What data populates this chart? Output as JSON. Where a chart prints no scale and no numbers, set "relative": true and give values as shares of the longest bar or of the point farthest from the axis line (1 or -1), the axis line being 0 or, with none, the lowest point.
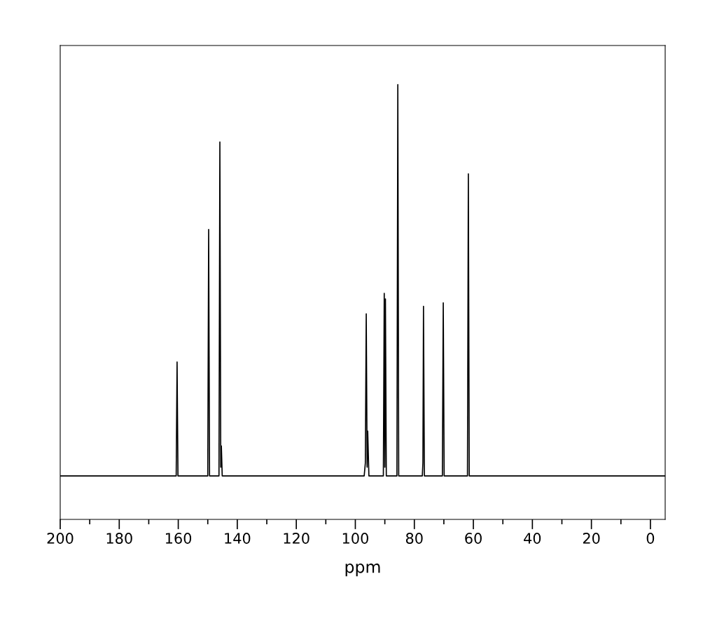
{
  "chart_data": {
    "type": "line",
    "xlabel": "ppm",
    "relative": true,
    "color": "#000000",
    "grid": false,
    "legend": false,
    "marker": "none",
    "line_style": "solid",
    "tick_labels": "x",
    "x": [
      200,
      160.7,
      160.4,
      160.1,
      150.0,
      149.7,
      149.4,
      146.2,
      145.9,
      145.6,
      145.4,
      145.1,
      97.0,
      96.6,
      96.3,
      96.0,
      95.8,
      95.4,
      90.5,
      90.2,
      90.0,
      89.8,
      89.5,
      85.9,
      85.6,
      85.3,
      77.3,
      77.1,
      76.9,
      76.6,
      70.5,
      70.2,
      69.9,
      62.0,
      61.7,
      61.4,
      -5
    ],
    "values": [
      0.1,
      0.1,
      0.362,
      0.1,
      0.1,
      0.667,
      0.1,
      0.1,
      0.868,
      0.12,
      0.169,
      0.1,
      0.1,
      0.13,
      0.473,
      0.12,
      0.203,
      0.1,
      0.1,
      0.52,
      0.12,
      0.507,
      0.1,
      0.1,
      1.0,
      0.1,
      0.1,
      0.13,
      0.49,
      0.1,
      0.1,
      0.498,
      0.1,
      0.1,
      0.795,
      0.1,
      0.1
    ],
    "xlim": [
      200,
      -5
    ],
    "xticks": [
      200,
      {
        "value": 190,
        "label": null
      },
      180,
      {
        "value": 170,
        "label": null
      },
      160,
      {
        "value": 150,
        "label": null
      },
      140,
      {
        "value": 130,
        "label": null
      },
      120,
      {
        "value": 110,
        "label": null
      },
      100,
      {
        "value": 90,
        "label": null
      },
      80,
      {
        "value": 70,
        "label": null
      },
      60,
      {
        "value": 50,
        "label": null
      },
      40,
      {
        "value": 30,
        "label": null
      },
      20,
      {
        "value": 10,
        "label": null
      },
      0
    ]
  }
}
